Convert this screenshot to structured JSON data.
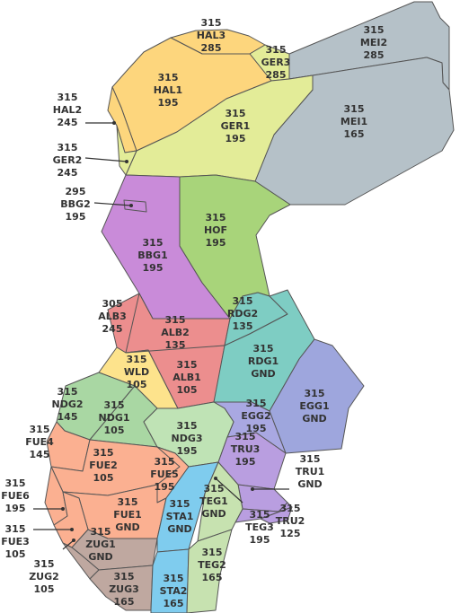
{
  "sectors": [
    {
      "id": "HAL3",
      "upper": "315",
      "name": "HAL3",
      "lower": "285",
      "color": "#fdd67d"
    },
    {
      "id": "GER3",
      "upper": "315",
      "name": "GER3",
      "lower": "285",
      "color": "#e3ec98"
    },
    {
      "id": "MEI2",
      "upper": "315",
      "name": "MEI2",
      "lower": "285",
      "color": "#b5c1c8"
    },
    {
      "id": "HAL1",
      "upper": "315",
      "name": "HAL1",
      "lower": "195",
      "color": "#fdd67d"
    },
    {
      "id": "HAL2",
      "upper": "315",
      "name": "HAL2",
      "lower": "245",
      "color": "#fdd67d"
    },
    {
      "id": "GER1",
      "upper": "315",
      "name": "GER1",
      "lower": "195",
      "color": "#e3ec98"
    },
    {
      "id": "GER2",
      "upper": "315",
      "name": "GER2",
      "lower": "245",
      "color": "#e3ec98"
    },
    {
      "id": "MEI1",
      "upper": "315",
      "name": "MEI1",
      "lower": "165",
      "color": "#b5c1c8"
    },
    {
      "id": "BBG2",
      "upper": "295",
      "name": "BBG2",
      "lower": "195",
      "color": "#c98bd9"
    },
    {
      "id": "BBG1",
      "upper": "315",
      "name": "BBG1",
      "lower": "195",
      "color": "#c98bd9"
    },
    {
      "id": "HOF",
      "upper": "315",
      "name": "HOF",
      "lower": "195",
      "color": "#a8d47a"
    },
    {
      "id": "ALB3",
      "upper": "305",
      "name": "ALB3",
      "lower": "245",
      "color": "#ec8e8e"
    },
    {
      "id": "ALB2",
      "upper": "315",
      "name": "ALB2",
      "lower": "135",
      "color": "#ec8e8e"
    },
    {
      "id": "RDG2",
      "upper": "315",
      "name": "RDG2",
      "lower": "135",
      "color": "#7ecdc3"
    },
    {
      "id": "RDG1",
      "upper": "315",
      "name": "RDG1",
      "lower": "GND",
      "color": "#7ecdc3"
    },
    {
      "id": "WLD",
      "upper": "315",
      "name": "WLD",
      "lower": "105",
      "color": "#fde38c"
    },
    {
      "id": "ALB1",
      "upper": "315",
      "name": "ALB1",
      "lower": "105",
      "color": "#ec8e8e"
    },
    {
      "id": "EGG1",
      "upper": "315",
      "name": "EGG1",
      "lower": "GND",
      "color": "#9ea6dd"
    },
    {
      "id": "NDG2",
      "upper": "315",
      "name": "NDG2",
      "lower": "145",
      "color": "#a9d7a3"
    },
    {
      "id": "NDG1",
      "upper": "315",
      "name": "NDG1",
      "lower": "105",
      "color": "#a9d7a3"
    },
    {
      "id": "NDG3",
      "upper": "315",
      "name": "NDG3",
      "lower": "195",
      "color": "#bfe3b5"
    },
    {
      "id": "EGG2",
      "upper": "315",
      "name": "EGG2",
      "lower": "195",
      "color": "#a9a8e2"
    },
    {
      "id": "FUE4",
      "upper": "315",
      "name": "FUE4",
      "lower": "145",
      "color": "#fbb091"
    },
    {
      "id": "TRU3",
      "upper": "315",
      "name": "TRU3",
      "lower": "195",
      "color": "#b99ee0"
    },
    {
      "id": "TRU1",
      "upper": "315",
      "name": "TRU1",
      "lower": "GND",
      "color": "#b99ee0"
    },
    {
      "id": "FUE2",
      "upper": "315",
      "name": "FUE2",
      "lower": "105",
      "color": "#fbb091"
    },
    {
      "id": "FUE5",
      "upper": "315",
      "name": "FUE5",
      "lower": "195",
      "color": "#fbb091"
    },
    {
      "id": "FUE6",
      "upper": "315",
      "name": "FUE6",
      "lower": "195",
      "color": "#fbb091"
    },
    {
      "id": "FUE1",
      "upper": "315",
      "name": "FUE1",
      "lower": "GND",
      "color": "#fbb091"
    },
    {
      "id": "STA1",
      "upper": "315",
      "name": "STA1",
      "lower": "GND",
      "color": "#7fccee"
    },
    {
      "id": "TEG1",
      "upper": "315",
      "name": "TEG1",
      "lower": "GND",
      "color": "#c7e2b0"
    },
    {
      "id": "TRU2",
      "upper": "315",
      "name": "TRU2",
      "lower": "125",
      "color": "#b99ee0"
    },
    {
      "id": "FUE3",
      "upper": "315",
      "name": "FUE3",
      "lower": "105",
      "color": "#fbb091"
    },
    {
      "id": "ZUG1",
      "upper": "315",
      "name": "ZUG1",
      "lower": "GND",
      "color": "#bfa8a0"
    },
    {
      "id": "TEG3",
      "upper": "315",
      "name": "TEG3",
      "lower": "195",
      "color": "#b99ee0"
    },
    {
      "id": "TEG2",
      "upper": "315",
      "name": "TEG2",
      "lower": "165",
      "color": "#c7e2b0"
    },
    {
      "id": "ZUG2",
      "upper": "315",
      "name": "ZUG2",
      "lower": "105",
      "color": "#bfa8a0"
    },
    {
      "id": "ZUG3",
      "upper": "315",
      "name": "ZUG3",
      "lower": "165",
      "color": "#bfa8a0"
    },
    {
      "id": "STA2",
      "upper": "315",
      "name": "STA2",
      "lower": "165",
      "color": "#7fccee"
    }
  ]
}
